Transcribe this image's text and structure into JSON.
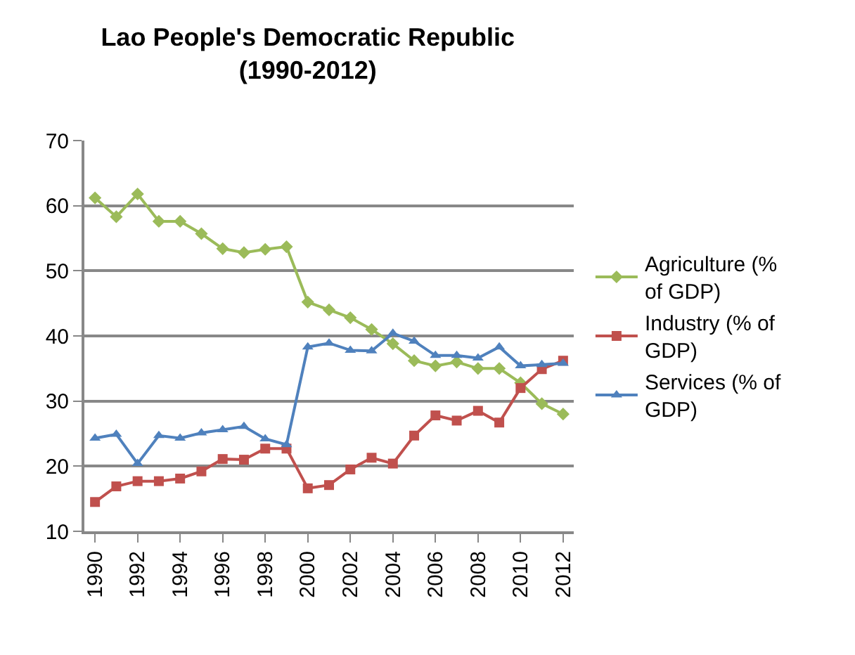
{
  "chart_data": {
    "type": "line",
    "title": "Lao People's Democratic Republic (1990-2012)",
    "x": [
      1990,
      1991,
      1992,
      1993,
      1994,
      1995,
      1996,
      1997,
      1998,
      1999,
      2000,
      2001,
      2002,
      2003,
      2004,
      2005,
      2006,
      2007,
      2008,
      2009,
      2010,
      2011,
      2012
    ],
    "series": [
      {
        "name": "Agriculture (% of GDP)",
        "color": "#9bbb59",
        "marker": "diamond",
        "values": [
          61.2,
          58.3,
          61.8,
          57.6,
          57.6,
          55.7,
          53.4,
          52.8,
          53.3,
          53.7,
          45.2,
          44.0,
          42.8,
          41.0,
          38.8,
          36.2,
          35.4,
          36.0,
          35.0,
          35.0,
          32.8,
          29.6,
          28.0
        ]
      },
      {
        "name": "Industry (% of GDP)",
        "color": "#c0504d",
        "marker": "square",
        "values": [
          14.5,
          16.9,
          17.7,
          17.7,
          18.1,
          19.2,
          21.1,
          21.0,
          22.7,
          22.7,
          16.6,
          17.1,
          19.5,
          21.3,
          20.4,
          24.7,
          27.8,
          27.0,
          28.5,
          26.7,
          32.0,
          34.9,
          36.2
        ]
      },
      {
        "name": "Services (% of GDP)",
        "color": "#4f81bd",
        "marker": "triangle",
        "values": [
          24.3,
          24.9,
          20.4,
          24.7,
          24.3,
          25.1,
          25.6,
          26.1,
          24.2,
          23.3,
          38.3,
          38.9,
          37.8,
          37.7,
          40.4,
          39.2,
          37.0,
          37.0,
          36.6,
          38.3,
          35.4,
          35.6,
          35.8
        ]
      }
    ],
    "xlim": [
      1989.5,
      2012.5
    ],
    "xticks": [
      1990,
      1992,
      1994,
      1996,
      1998,
      2000,
      2002,
      2004,
      2006,
      2008,
      2010,
      2012
    ],
    "ylim": [
      10,
      70
    ],
    "yticks": [
      10,
      20,
      30,
      40,
      50,
      60,
      70
    ],
    "grid": "y",
    "legend": "right"
  }
}
